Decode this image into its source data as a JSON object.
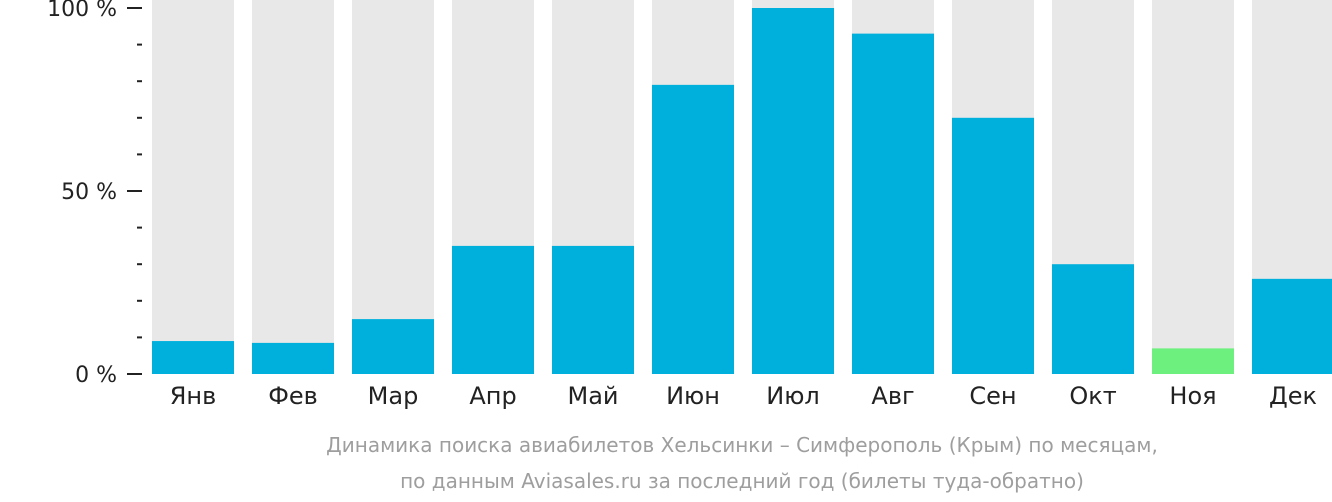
{
  "chart_data": {
    "type": "bar",
    "categories": [
      "Янв",
      "Фев",
      "Мар",
      "Апр",
      "Май",
      "Июн",
      "Июл",
      "Авг",
      "Сен",
      "Окт",
      "Ноя",
      "Дек"
    ],
    "values": [
      9,
      8.5,
      15,
      35,
      35,
      79,
      100,
      93,
      70,
      30,
      7,
      26
    ],
    "ylim": [
      0,
      100
    ],
    "yticks": [
      {
        "value": 100,
        "label": "100 %"
      },
      {
        "value": 50,
        "label": "50 %"
      },
      {
        "value": 0,
        "label": "0 %"
      }
    ],
    "minor_tick_step": 10,
    "title": "",
    "xlabel": "",
    "ylabel": "",
    "caption_line1": "Динамика поиска авиабилетов Хельсинки – Симферополь (Крым) по месяцам,",
    "caption_line2": "по данным Aviasales.ru за последний год (билеты туда-обратно)",
    "colors": {
      "bar": "#00b0dc",
      "highlight_bar": "#6ef07f",
      "background_bar": "#e8e8e8",
      "axis": "#222222",
      "caption": "#9e9e9e"
    },
    "highlight_index": 10
  }
}
